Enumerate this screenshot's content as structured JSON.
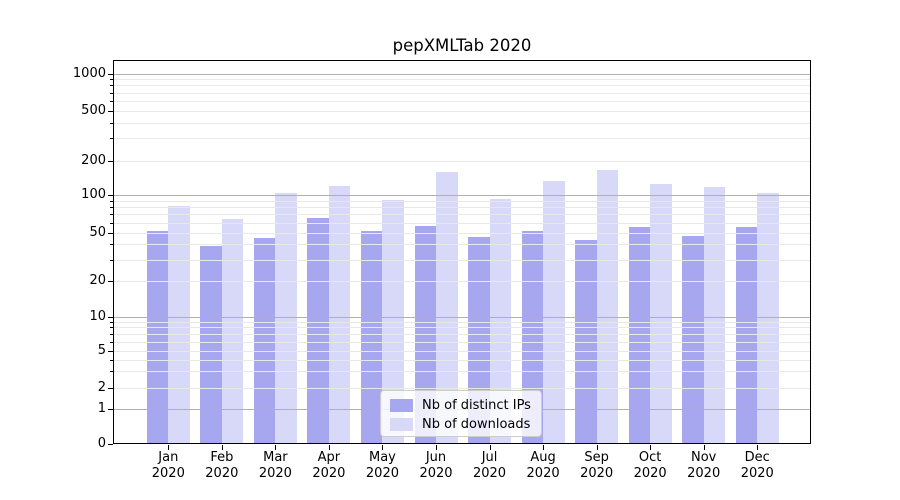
{
  "title": "pepXMLTab 2020",
  "legend": {
    "items": [
      {
        "label": "Nb of distinct IPs",
        "color": "#a7a7f0"
      },
      {
        "label": "Nb of downloads",
        "color": "#d8d8f8"
      }
    ]
  },
  "colors": {
    "bar_distinct_ips": "#a7a7f0",
    "bar_downloads": "#d8d8f8",
    "grid_major": "#b0b0b0",
    "grid_minor": "#e8e8e8",
    "axis": "#000000"
  },
  "chart_data": {
    "type": "bar",
    "title": "pepXMLTab 2020",
    "categories": [
      "Jan 2020",
      "Feb 2020",
      "Mar 2020",
      "Apr 2020",
      "May 2020",
      "Jun 2020",
      "Jul 2020",
      "Aug 2020",
      "Sep 2020",
      "Oct 2020",
      "Nov 2020",
      "Dec 2020"
    ],
    "series": [
      {
        "name": "Nb of distinct IPs",
        "color": "#a7a7f0",
        "values": [
          51,
          39,
          45,
          65,
          51,
          56,
          46,
          51,
          43,
          55,
          47,
          55
        ]
      },
      {
        "name": "Nb of downloads",
        "color": "#d8d8f8",
        "values": [
          82,
          64,
          105,
          121,
          91,
          158,
          93,
          132,
          165,
          124,
          118,
          105
        ]
      }
    ],
    "yscale": "symlog",
    "yticks": [
      0,
      1,
      2,
      5,
      10,
      20,
      50,
      100,
      200,
      500,
      1000
    ],
    "ylim": [
      0,
      1000
    ],
    "grid": true,
    "grid_over_bars": true,
    "legend_position": "lower center"
  }
}
